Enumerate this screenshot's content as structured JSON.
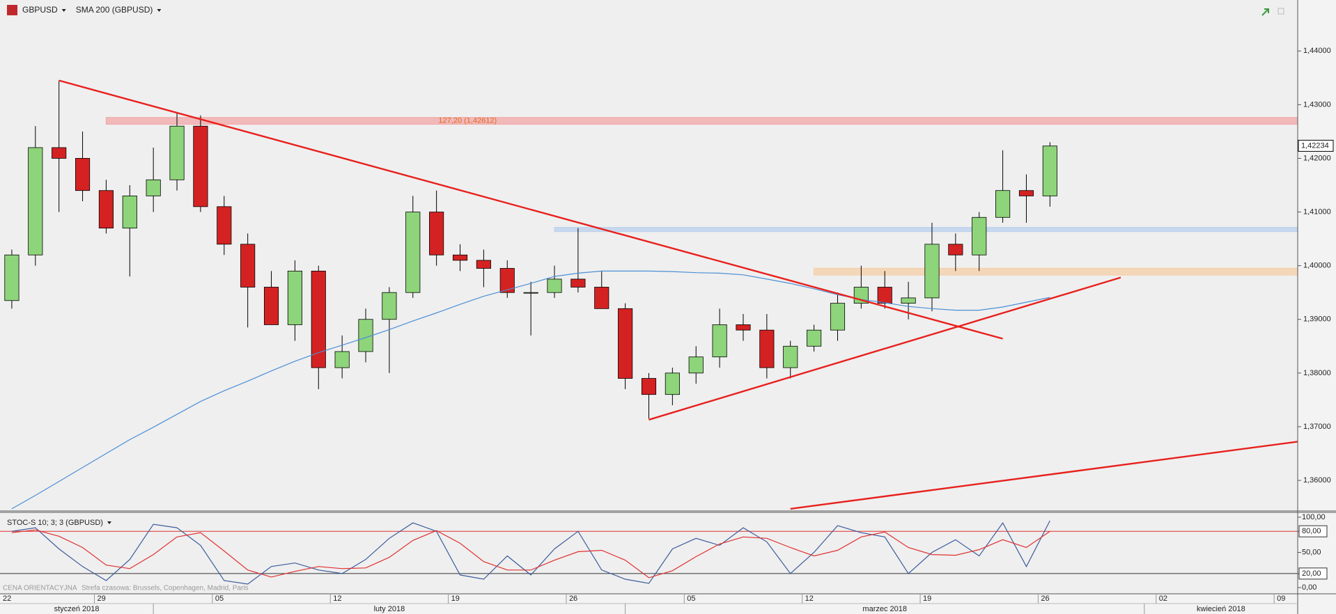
{
  "chart_data": [
    {
      "type": "candlestick",
      "symbol_icon": "FX",
      "x": [
        "2018-01-23",
        "2018-01-24",
        "2018-01-25",
        "2018-01-26",
        "2018-01-29",
        "2018-01-30",
        "2018-01-31",
        "2018-02-01",
        "2018-02-02",
        "2018-02-05",
        "2018-02-06",
        "2018-02-07",
        "2018-02-08",
        "2018-02-09",
        "2018-02-12",
        "2018-02-13",
        "2018-02-14",
        "2018-02-15",
        "2018-02-16",
        "2018-02-19",
        "2018-02-20",
        "2018-02-21",
        "2018-02-22",
        "2018-02-23",
        "2018-02-26",
        "2018-02-27",
        "2018-02-28",
        "2018-03-01",
        "2018-03-02",
        "2018-03-05",
        "2018-03-06",
        "2018-03-07",
        "2018-03-08",
        "2018-03-09",
        "2018-03-12",
        "2018-03-13",
        "2018-03-14",
        "2018-03-15",
        "2018-03-16",
        "2018-03-19",
        "2018-03-20",
        "2018-03-21",
        "2018-03-22",
        "2018-03-23",
        "2018-03-26"
      ],
      "series": [
        {
          "name": "GBPUSD",
          "type": "candlestick",
          "up_color": "#8ed47a",
          "down_color": "#d42222",
          "color": "#000000",
          "open": [
            1.3935,
            1.402,
            1.422,
            1.42,
            1.414,
            1.407,
            1.413,
            1.416,
            1.426,
            1.411,
            1.404,
            1.396,
            1.389,
            1.399,
            1.381,
            1.384,
            1.39,
            1.395,
            1.41,
            1.402,
            1.401,
            1.3995,
            1.395,
            1.395,
            1.3975,
            1.396,
            1.392,
            1.379,
            1.376,
            1.38,
            1.383,
            1.389,
            1.388,
            1.381,
            1.385,
            1.388,
            1.393,
            1.396,
            1.393,
            1.394,
            1.404,
            1.402,
            1.409,
            1.414,
            1.413
          ],
          "high": [
            1.403,
            1.426,
            1.4345,
            1.425,
            1.416,
            1.415,
            1.422,
            1.4285,
            1.428,
            1.413,
            1.406,
            1.399,
            1.401,
            1.4,
            1.387,
            1.392,
            1.396,
            1.413,
            1.414,
            1.404,
            1.403,
            1.401,
            1.397,
            1.4,
            1.407,
            1.399,
            1.393,
            1.38,
            1.381,
            1.385,
            1.392,
            1.391,
            1.391,
            1.386,
            1.389,
            1.395,
            1.4,
            1.399,
            1.397,
            1.408,
            1.406,
            1.41,
            1.4215,
            1.417,
            1.423
          ],
          "low": [
            1.392,
            1.4,
            1.41,
            1.412,
            1.406,
            1.398,
            1.41,
            1.414,
            1.41,
            1.402,
            1.3885,
            1.389,
            1.386,
            1.377,
            1.379,
            1.382,
            1.38,
            1.394,
            1.4,
            1.399,
            1.396,
            1.394,
            1.387,
            1.394,
            1.395,
            1.392,
            1.377,
            1.3715,
            1.374,
            1.378,
            1.381,
            1.386,
            1.379,
            1.379,
            1.384,
            1.386,
            1.392,
            1.392,
            1.39,
            1.3915,
            1.399,
            1.399,
            1.408,
            1.408,
            1.411
          ],
          "close": [
            1.402,
            1.422,
            1.42,
            1.414,
            1.407,
            1.413,
            1.416,
            1.426,
            1.411,
            1.404,
            1.396,
            1.389,
            1.399,
            1.381,
            1.384,
            1.39,
            1.395,
            1.41,
            1.402,
            1.401,
            1.3995,
            1.395,
            1.395,
            1.3975,
            1.396,
            1.392,
            1.379,
            1.376,
            1.38,
            1.383,
            1.389,
            1.388,
            1.381,
            1.385,
            1.388,
            1.393,
            1.396,
            1.393,
            1.394,
            1.404,
            1.402,
            1.409,
            1.414,
            1.413,
            1.4223
          ]
        },
        {
          "name": "SMA 200 (GBPUSD)",
          "type": "line",
          "color": "#4a8fd6",
          "values": [
            1.3547,
            1.3572,
            1.3598,
            1.3624,
            1.365,
            1.3676,
            1.3699,
            1.3723,
            1.3747,
            1.3767,
            1.3785,
            1.3804,
            1.3822,
            1.3838,
            1.3852,
            1.3866,
            1.3881,
            1.3897,
            1.3912,
            1.3928,
            1.3943,
            1.3955,
            1.3967,
            1.398,
            1.3986,
            1.399,
            1.399,
            1.399,
            1.3989,
            1.3987,
            1.3986,
            1.3983,
            1.3975,
            1.3967,
            1.3957,
            1.3946,
            1.3937,
            1.3931,
            1.3924,
            1.392,
            1.3917,
            1.3917,
            1.3923,
            1.3932,
            1.3941
          ]
        }
      ],
      "last": {
        "value": 1.42234,
        "label": "1,42234"
      },
      "zones": [
        {
          "start": "2018-01-29",
          "range": [
            1.42635,
            1.42762
          ],
          "color": "#f2a7a7",
          "label": "127,20 (1,42612)"
        },
        {
          "start": "2018-02-23",
          "range": [
            1.40635,
            1.40714
          ],
          "color": "#b9d0ee"
        },
        {
          "start": "2018-03-12",
          "range": [
            1.39825,
            1.39952
          ],
          "color": "#f5cfa6"
        }
      ],
      "trendlines": [
        {
          "x": [
            "2018-01-25",
            "2018-03-22"
          ],
          "y": [
            1.4345,
            1.3864
          ],
          "color": "#e8201c"
        },
        {
          "x": [
            "2018-03-01",
            "2018-03-29"
          ],
          "y": [
            1.3713,
            1.3978
          ],
          "color": "#e8201c"
        },
        {
          "x": [
            "2018-03-09",
            "2018-04-10"
          ],
          "y": [
            1.3547,
            1.3675
          ],
          "color": "#e8201c"
        }
      ],
      "xlim": [
        "2018-01-23",
        "2018-04-10"
      ],
      "xticks": [
        {
          "value": "2018-01-22",
          "label": "22"
        },
        {
          "value": "2018-01-29",
          "label": "29"
        },
        {
          "value": "2018-02-05",
          "label": "05"
        },
        {
          "value": "2018-02-12",
          "label": "12"
        },
        {
          "value": "2018-02-19",
          "label": "19"
        },
        {
          "value": "2018-02-26",
          "label": "26"
        },
        {
          "value": "2018-03-05",
          "label": "05"
        },
        {
          "value": "2018-03-12",
          "label": "12"
        },
        {
          "value": "2018-03-19",
          "label": "19"
        },
        {
          "value": "2018-03-26",
          "label": "26"
        },
        {
          "value": "2018-04-02",
          "label": "02"
        },
        {
          "value": "2018-04-09",
          "label": "09"
        }
      ],
      "months": [
        {
          "start": "2018-01-01",
          "label": "styczeń 2018"
        },
        {
          "start": "2018-02-01",
          "label": "luty 2018"
        },
        {
          "start": "2018-03-01",
          "label": "marzec 2018"
        },
        {
          "start": "2018-04-01",
          "label": "kwiecień 2018"
        }
      ],
      "ylim": [
        1.3543,
        1.4495
      ],
      "yticks": [
        {
          "value": 1.44,
          "label": "1,44000"
        },
        {
          "value": 1.43,
          "label": "1,43000"
        },
        {
          "value": 1.42,
          "label": "1,42000"
        },
        {
          "value": 1.41,
          "label": "1,41000"
        },
        {
          "value": 1.4,
          "label": "1,40000"
        },
        {
          "value": 1.39,
          "label": "1,39000"
        },
        {
          "value": 1.38,
          "label": "1,38000"
        },
        {
          "value": 1.37,
          "label": "1,37000"
        },
        {
          "value": 1.36,
          "label": "1,36000"
        }
      ]
    },
    {
      "type": "line",
      "title": "STOC-S 10; 3; 3 (GBPUSD)",
      "series": [
        {
          "color": "#3b5c9c",
          "values": [
            80,
            85,
            55,
            30,
            10,
            40,
            90,
            85,
            60,
            10,
            5,
            30,
            35,
            25,
            20,
            40,
            70,
            92,
            80,
            18,
            12,
            45,
            18,
            55,
            80,
            25,
            12,
            6,
            55,
            70,
            60,
            85,
            65,
            20,
            50,
            88,
            78,
            72,
            20,
            50,
            68,
            45,
            92,
            30,
            95
          ]
        },
        {
          "color": "#e03030",
          "values": [
            78,
            82,
            73,
            57,
            32,
            27,
            47,
            72,
            78,
            52,
            25,
            15,
            23,
            30,
            27,
            28,
            43,
            67,
            81,
            63,
            37,
            25,
            25,
            39,
            51,
            53,
            39,
            14,
            24,
            44,
            62,
            72,
            70,
            57,
            45,
            53,
            72,
            79,
            57,
            47,
            46,
            54,
            68,
            57,
            80
          ]
        }
      ],
      "levels": [
        {
          "value": 80,
          "color": "#e03030"
        },
        {
          "value": 20,
          "color": "#333333"
        }
      ],
      "ylim": [
        -8.8,
        106.9
      ],
      "yticks": [
        {
          "value": 100,
          "label": "100,00"
        },
        {
          "value": 80,
          "label": "80,00"
        },
        {
          "value": 50,
          "label": "50,00"
        },
        {
          "value": 20,
          "label": "20,00"
        },
        {
          "value": 0,
          "label": "0,00"
        }
      ],
      "annotations": [
        "CENA ORIENTACYJNA",
        "Strefa czasowa: Brussels, Copenhagen, Madrid, Paris"
      ]
    }
  ]
}
